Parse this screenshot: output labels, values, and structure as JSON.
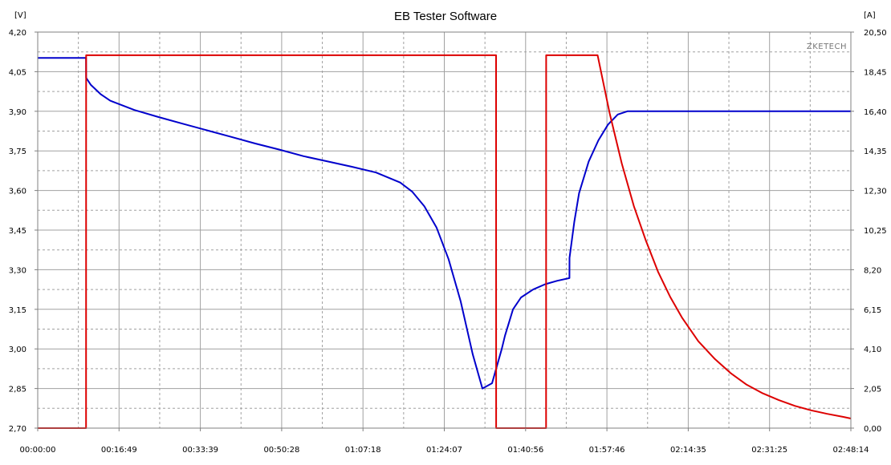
{
  "chart_data": {
    "type": "line",
    "title": "EB Tester Software",
    "watermark": "ZKETECH",
    "left_unit": "[V]",
    "right_unit": "[A]",
    "x_ticks": [
      "00:00:00",
      "00:16:49",
      "00:33:39",
      "00:50:28",
      "01:07:18",
      "01:24:07",
      "01:40:56",
      "01:57:46",
      "02:14:35",
      "02:31:25",
      "02:48:14"
    ],
    "x_range_seconds": [
      0,
      10094
    ],
    "y_left_ticks": [
      "2,70",
      "2,85",
      "3,00",
      "3,15",
      "3,30",
      "3,45",
      "3,60",
      "3,75",
      "3,90",
      "4,05",
      "4,20"
    ],
    "y_left_range": [
      2.7,
      4.2
    ],
    "y_right_ticks": [
      "0,00",
      "2,05",
      "4,10",
      "6,15",
      "8,20",
      "10,25",
      "12,30",
      "14,35",
      "16,40",
      "18,45",
      "20,50"
    ],
    "y_right_range": [
      0,
      20.5
    ],
    "grid": true,
    "series": [
      {
        "axis": "left",
        "color": "#0000cc",
        "x": [
          0,
          600,
          601,
          660,
          780,
          900,
          1200,
          1500,
          1800,
          2100,
          2400,
          2700,
          3000,
          3300,
          3600,
          3900,
          4200,
          4500,
          4650,
          4800,
          4950,
          5100,
          5250,
          5400,
          5520,
          5640,
          5760,
          5800,
          5840,
          5900,
          6000,
          6150,
          6300,
          6450,
          6600,
          6601,
          6660,
          6720,
          6840,
          6960,
          7080,
          7200,
          7320,
          7440,
          7560,
          7620,
          7680,
          7740,
          8400,
          9000,
          9600,
          10094
        ],
        "y": [
          4.102,
          4.102,
          4.027,
          4.0,
          3.965,
          3.94,
          3.905,
          3.878,
          3.853,
          3.828,
          3.803,
          3.778,
          3.755,
          3.73,
          3.71,
          3.69,
          3.668,
          3.63,
          3.595,
          3.54,
          3.46,
          3.34,
          3.18,
          2.98,
          2.85,
          2.87,
          3.0,
          3.05,
          3.09,
          3.15,
          3.195,
          3.225,
          3.245,
          3.258,
          3.268,
          3.345,
          3.48,
          3.59,
          3.71,
          3.79,
          3.85,
          3.888,
          3.9,
          3.9,
          3.9,
          3.9,
          3.9,
          3.9,
          3.9,
          3.9,
          3.9,
          3.9
        ]
      },
      {
        "axis": "right",
        "color": "#dd0000",
        "x": [
          0,
          600,
          601,
          5690,
          5691,
          6310,
          6311,
          6950,
          7100,
          7250,
          7400,
          7550,
          7700,
          7850,
          8000,
          8200,
          8400,
          8600,
          8800,
          9000,
          9200,
          9400,
          9600,
          9800,
          10000,
          10094
        ],
        "y": [
          0,
          0,
          19.3,
          19.3,
          0,
          0,
          19.3,
          19.3,
          16.3,
          13.7,
          11.5,
          9.7,
          8.1,
          6.8,
          5.7,
          4.5,
          3.6,
          2.85,
          2.25,
          1.8,
          1.45,
          1.15,
          0.92,
          0.74,
          0.58,
          0.5
        ]
      }
    ]
  }
}
